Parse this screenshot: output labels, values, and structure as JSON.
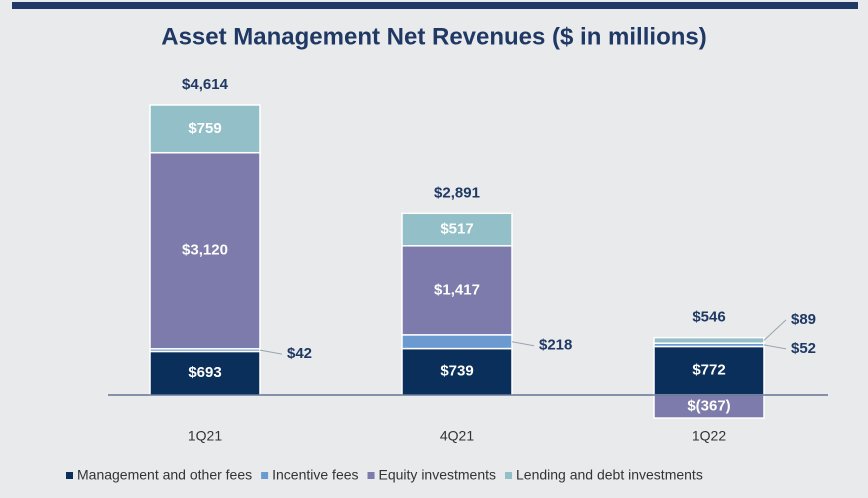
{
  "chart_data": {
    "type": "stacked-bar",
    "title": "Asset Management Net Revenues ($ in millions)",
    "categories": [
      "1Q21",
      "4Q21",
      "1Q22"
    ],
    "series": [
      {
        "name": "Management and other fees",
        "color": "#0b2f5b",
        "values": [
          693,
          739,
          772
        ],
        "value_labels": [
          "$693",
          "$739",
          "$772"
        ]
      },
      {
        "name": "Incentive fees",
        "color": "#6a9ad0",
        "values": [
          42,
          218,
          52
        ],
        "value_labels": [
          "$42",
          "$218",
          "$52"
        ]
      },
      {
        "name": "Equity investments",
        "color": "#7d7bab",
        "values": [
          3120,
          1417,
          -367
        ],
        "value_labels": [
          "$3,120",
          "$1,417",
          "$(367)"
        ]
      },
      {
        "name": "Lending and debt investments",
        "color": "#92bfc8",
        "values": [
          759,
          517,
          89
        ],
        "value_labels": [
          "$759",
          "$517",
          "$89"
        ]
      }
    ],
    "totals": [
      4614,
      2891,
      546
    ],
    "total_labels": [
      "$4,614",
      "$2,891",
      "$546"
    ]
  }
}
